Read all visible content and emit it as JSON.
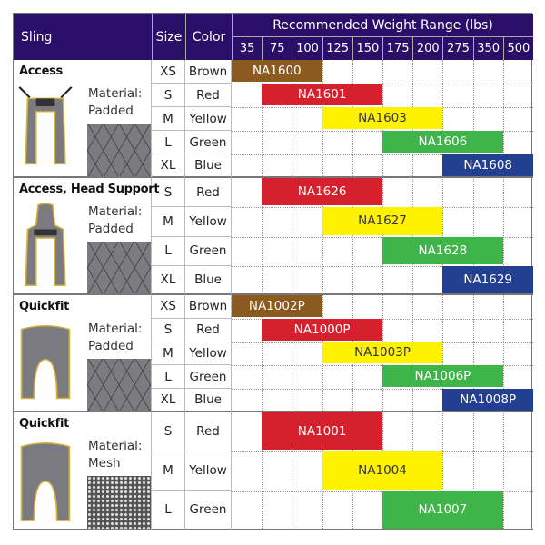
{
  "header": {
    "sling": "Sling",
    "size": "Size",
    "color": "Color",
    "weight_range": "Recommended Weight Range (lbs)",
    "weights": [
      "35",
      "75",
      "100",
      "125",
      "150",
      "175",
      "200",
      "275",
      "350",
      "500"
    ]
  },
  "colors": {
    "header_bg": "#2a0f68",
    "Brown": "#8b5a1e",
    "Red": "#d7202e",
    "Yellow": "#fff200",
    "Green": "#3db549",
    "Blue": "#233f91"
  },
  "groups": [
    {
      "name": "Access",
      "material_label": "Material:",
      "material": "Padded",
      "image": "access-sling-image",
      "rows": [
        {
          "size": "XS",
          "color": "Brown",
          "product": "NA1600",
          "from": "35",
          "to": "100"
        },
        {
          "size": "S",
          "color": "Red",
          "product": "NA1601",
          "from": "75",
          "to": "150"
        },
        {
          "size": "M",
          "color": "Yellow",
          "product": "NA1603",
          "from": "125",
          "to": "200"
        },
        {
          "size": "L",
          "color": "Green",
          "product": "NA1606",
          "from": "175",
          "to": "350"
        },
        {
          "size": "XL",
          "color": "Blue",
          "product": "NA1608",
          "from": "275",
          "to": "500"
        }
      ]
    },
    {
      "name": "Access, Head Support",
      "material_label": "Material:",
      "material": "Padded",
      "image": "head-support-sling-image",
      "rows": [
        {
          "size": "S",
          "color": "Red",
          "product": "NA1626",
          "from": "75",
          "to": "150"
        },
        {
          "size": "M",
          "color": "Yellow",
          "product": "NA1627",
          "from": "125",
          "to": "200"
        },
        {
          "size": "L",
          "color": "Green",
          "product": "NA1628",
          "from": "175",
          "to": "350"
        },
        {
          "size": "XL",
          "color": "Blue",
          "product": "NA1629",
          "from": "275",
          "to": "500"
        }
      ]
    },
    {
      "name": "Quickfit",
      "material_label": "Material:",
      "material": "Padded",
      "image": "quickfit-sling-image",
      "rows": [
        {
          "size": "XS",
          "color": "Brown",
          "product": "NA1002P",
          "from": "35",
          "to": "100"
        },
        {
          "size": "S",
          "color": "Red",
          "product": "NA1000P",
          "from": "75",
          "to": "150"
        },
        {
          "size": "M",
          "color": "Yellow",
          "product": "NA1003P",
          "from": "125",
          "to": "200"
        },
        {
          "size": "L",
          "color": "Green",
          "product": "NA1006P",
          "from": "175",
          "to": "350"
        },
        {
          "size": "XL",
          "color": "Blue",
          "product": "NA1008P",
          "from": "275",
          "to": "500"
        }
      ]
    },
    {
      "name": "Quickfit",
      "material_label": "Material:",
      "material": "Mesh",
      "image": "quickfit-mesh-sling-image",
      "rows": [
        {
          "size": "S",
          "color": "Red",
          "product": "NA1001",
          "from": "75",
          "to": "150"
        },
        {
          "size": "M",
          "color": "Yellow",
          "product": "NA1004",
          "from": "125",
          "to": "200"
        },
        {
          "size": "L",
          "color": "Green",
          "product": "NA1007",
          "from": "175",
          "to": "350"
        }
      ]
    }
  ]
}
